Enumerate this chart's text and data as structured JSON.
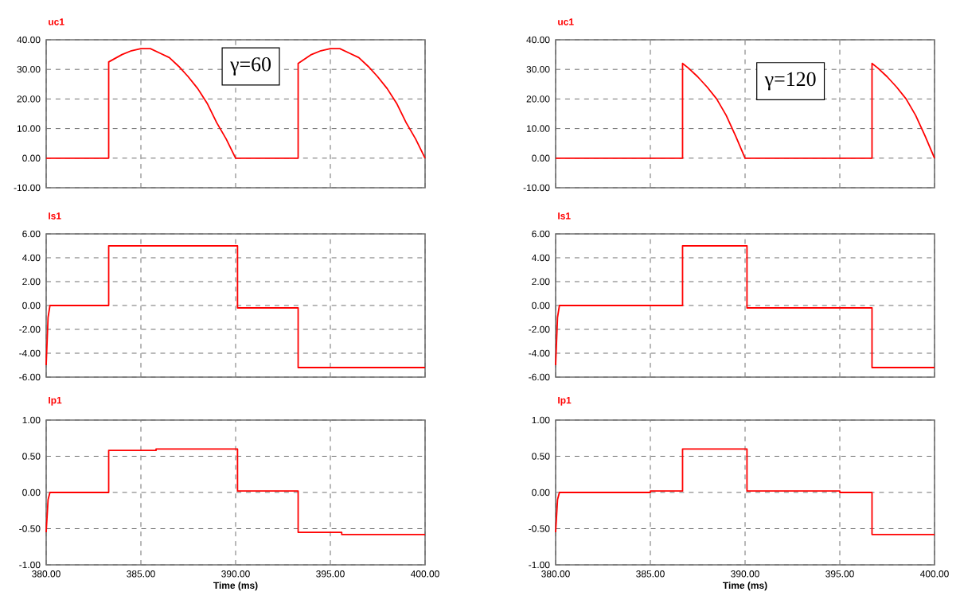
{
  "chart_data": [
    {
      "type": "line",
      "title": "uc1",
      "annotations": [
        "γ=60"
      ],
      "color": "#ff0000",
      "grid": true,
      "tick_labels": "y",
      "x": [
        380,
        383.3,
        383.3,
        384,
        384.5,
        385,
        385.5,
        386,
        386.5,
        387,
        387.5,
        388,
        388.5,
        389,
        389.5,
        390,
        393.3,
        393.3,
        394,
        394.5,
        395,
        395.5,
        396,
        396.5,
        397,
        397.5,
        398,
        398.5,
        399,
        399.5,
        400
      ],
      "values": [
        0,
        0,
        32.5,
        35,
        36.3,
        37,
        37,
        35.5,
        34,
        31,
        27.5,
        23.5,
        18.5,
        12,
        6.5,
        0,
        0,
        32,
        35,
        36.3,
        37,
        37,
        35.5,
        34,
        31,
        27.5,
        23.5,
        18.5,
        12,
        6.5,
        0
      ],
      "xlim": [
        380,
        400
      ],
      "xticks": [
        {
          "value": 380,
          "label": null
        },
        {
          "value": 385,
          "label": null
        },
        {
          "value": 390,
          "label": null
        },
        {
          "value": 395,
          "label": null
        },
        {
          "value": 400,
          "label": null
        }
      ],
      "ylim": [
        -10,
        40
      ],
      "yticks": [
        {
          "value": -10,
          "label": "-10.00"
        },
        {
          "value": 0,
          "label": "0.00"
        },
        {
          "value": 10,
          "label": "10.00"
        },
        {
          "value": 20,
          "label": "20.00"
        },
        {
          "value": 30,
          "label": "30.00"
        },
        {
          "value": 40,
          "label": "40.00"
        }
      ]
    },
    {
      "type": "line",
      "title": "uc1",
      "annotations": [
        "γ=120"
      ],
      "color": "#ff0000",
      "grid": true,
      "tick_labels": "y",
      "x": [
        380,
        386.7,
        386.7,
        387,
        387.5,
        388,
        388.5,
        389,
        389.5,
        390,
        396.7,
        396.7,
        397,
        397.5,
        398,
        398.5,
        399,
        399.5,
        400
      ],
      "values": [
        0,
        0,
        32,
        30.5,
        27.5,
        24,
        20,
        14.5,
        7.5,
        0,
        0,
        32,
        30.5,
        27.5,
        24,
        20,
        14.5,
        7.5,
        0
      ],
      "xlim": [
        380,
        400
      ],
      "xticks": [
        {
          "value": 380,
          "label": null
        },
        {
          "value": 385,
          "label": null
        },
        {
          "value": 390,
          "label": null
        },
        {
          "value": 395,
          "label": null
        },
        {
          "value": 400,
          "label": null
        }
      ],
      "ylim": [
        -10,
        40
      ],
      "yticks": [
        {
          "value": -10,
          "label": "-10.00"
        },
        {
          "value": 0,
          "label": "0.00"
        },
        {
          "value": 10,
          "label": "10.00"
        },
        {
          "value": 20,
          "label": "20.00"
        },
        {
          "value": 30,
          "label": "30.00"
        },
        {
          "value": 40,
          "label": "40.00"
        }
      ]
    },
    {
      "type": "line",
      "title": "Is1",
      "color": "#ff0000",
      "grid": true,
      "tick_labels": "y",
      "x": [
        380,
        380.1,
        380.2,
        383.3,
        383.3,
        390.1,
        390.1,
        393.3,
        393.3,
        400
      ],
      "values": [
        -5,
        -1,
        0,
        0,
        5,
        5,
        -0.2,
        -0.2,
        -5.2,
        -5.2
      ],
      "xlim": [
        380,
        400
      ],
      "xticks": [
        {
          "value": 380,
          "label": null
        },
        {
          "value": 385,
          "label": null
        },
        {
          "value": 390,
          "label": null
        },
        {
          "value": 395,
          "label": null
        },
        {
          "value": 400,
          "label": null
        }
      ],
      "ylim": [
        -6,
        6
      ],
      "yticks": [
        {
          "value": -6,
          "label": "-6.00"
        },
        {
          "value": -4,
          "label": "-4.00"
        },
        {
          "value": -2,
          "label": "-2.00"
        },
        {
          "value": 0,
          "label": "0.00"
        },
        {
          "value": 2,
          "label": "2.00"
        },
        {
          "value": 4,
          "label": "4.00"
        },
        {
          "value": 6,
          "label": "6.00"
        }
      ]
    },
    {
      "type": "line",
      "title": "Is1",
      "color": "#ff0000",
      "grid": true,
      "tick_labels": "y",
      "x": [
        380,
        380.1,
        380.2,
        386.7,
        386.7,
        390.1,
        390.1,
        396.7,
        396.7,
        400
      ],
      "values": [
        -5,
        -1,
        0,
        0,
        5,
        5,
        -0.2,
        -0.2,
        -5.2,
        -5.2
      ],
      "xlim": [
        380,
        400
      ],
      "xticks": [
        {
          "value": 380,
          "label": null
        },
        {
          "value": 385,
          "label": null
        },
        {
          "value": 390,
          "label": null
        },
        {
          "value": 395,
          "label": null
        },
        {
          "value": 400,
          "label": null
        }
      ],
      "ylim": [
        -6,
        6
      ],
      "yticks": [
        {
          "value": -6,
          "label": "-6.00"
        },
        {
          "value": -4,
          "label": "-4.00"
        },
        {
          "value": -2,
          "label": "-2.00"
        },
        {
          "value": 0,
          "label": "0.00"
        },
        {
          "value": 2,
          "label": "2.00"
        },
        {
          "value": 4,
          "label": "4.00"
        },
        {
          "value": 6,
          "label": "6.00"
        }
      ]
    },
    {
      "type": "line",
      "title": "Ip1",
      "xlabel": "Time (ms)",
      "color": "#ff0000",
      "grid": true,
      "x": [
        380,
        380.1,
        380.2,
        383.3,
        383.3,
        385.8,
        385.8,
        390.1,
        390.1,
        393.3,
        393.3,
        395.6,
        395.6,
        400
      ],
      "values": [
        -0.55,
        -0.1,
        0,
        0,
        0.58,
        0.58,
        0.6,
        0.6,
        0.02,
        0.02,
        -0.55,
        -0.55,
        -0.58,
        -0.58
      ],
      "xlim": [
        380,
        400
      ],
      "xticks": [
        {
          "value": 380,
          "label": "380.00"
        },
        {
          "value": 385,
          "label": "385.00"
        },
        {
          "value": 390,
          "label": "390.00"
        },
        {
          "value": 395,
          "label": "395.00"
        },
        {
          "value": 400,
          "label": "400.00"
        }
      ],
      "ylim": [
        -1,
        1
      ],
      "yticks": [
        {
          "value": -1,
          "label": "-1.00"
        },
        {
          "value": -0.5,
          "label": "-0.50"
        },
        {
          "value": 0,
          "label": "0.00"
        },
        {
          "value": 0.5,
          "label": "0.50"
        },
        {
          "value": 1,
          "label": "1.00"
        }
      ]
    },
    {
      "type": "line",
      "title": "Ip1",
      "xlabel": "Time (ms)",
      "color": "#ff0000",
      "grid": true,
      "x": [
        380,
        380.1,
        380.2,
        385,
        385,
        386.7,
        386.7,
        390.1,
        390.1,
        395,
        395,
        396.7,
        396.7,
        400
      ],
      "values": [
        -0.55,
        -0.1,
        0,
        0,
        0.02,
        0.02,
        0.6,
        0.6,
        0.02,
        0.02,
        0,
        0,
        -0.58,
        -0.58
      ],
      "xlim": [
        380,
        400
      ],
      "xticks": [
        {
          "value": 380,
          "label": "380.00"
        },
        {
          "value": 385,
          "label": "385.00"
        },
        {
          "value": 390,
          "label": "390.00"
        },
        {
          "value": 395,
          "label": "395.00"
        },
        {
          "value": 400,
          "label": "400.00"
        }
      ],
      "ylim": [
        -1,
        1
      ],
      "yticks": [
        {
          "value": -1,
          "label": "-1.00"
        },
        {
          "value": -0.5,
          "label": "-0.50"
        },
        {
          "value": 0,
          "label": "0.00"
        },
        {
          "value": 0.5,
          "label": "0.50"
        },
        {
          "value": 1,
          "label": "1.00"
        }
      ]
    }
  ]
}
